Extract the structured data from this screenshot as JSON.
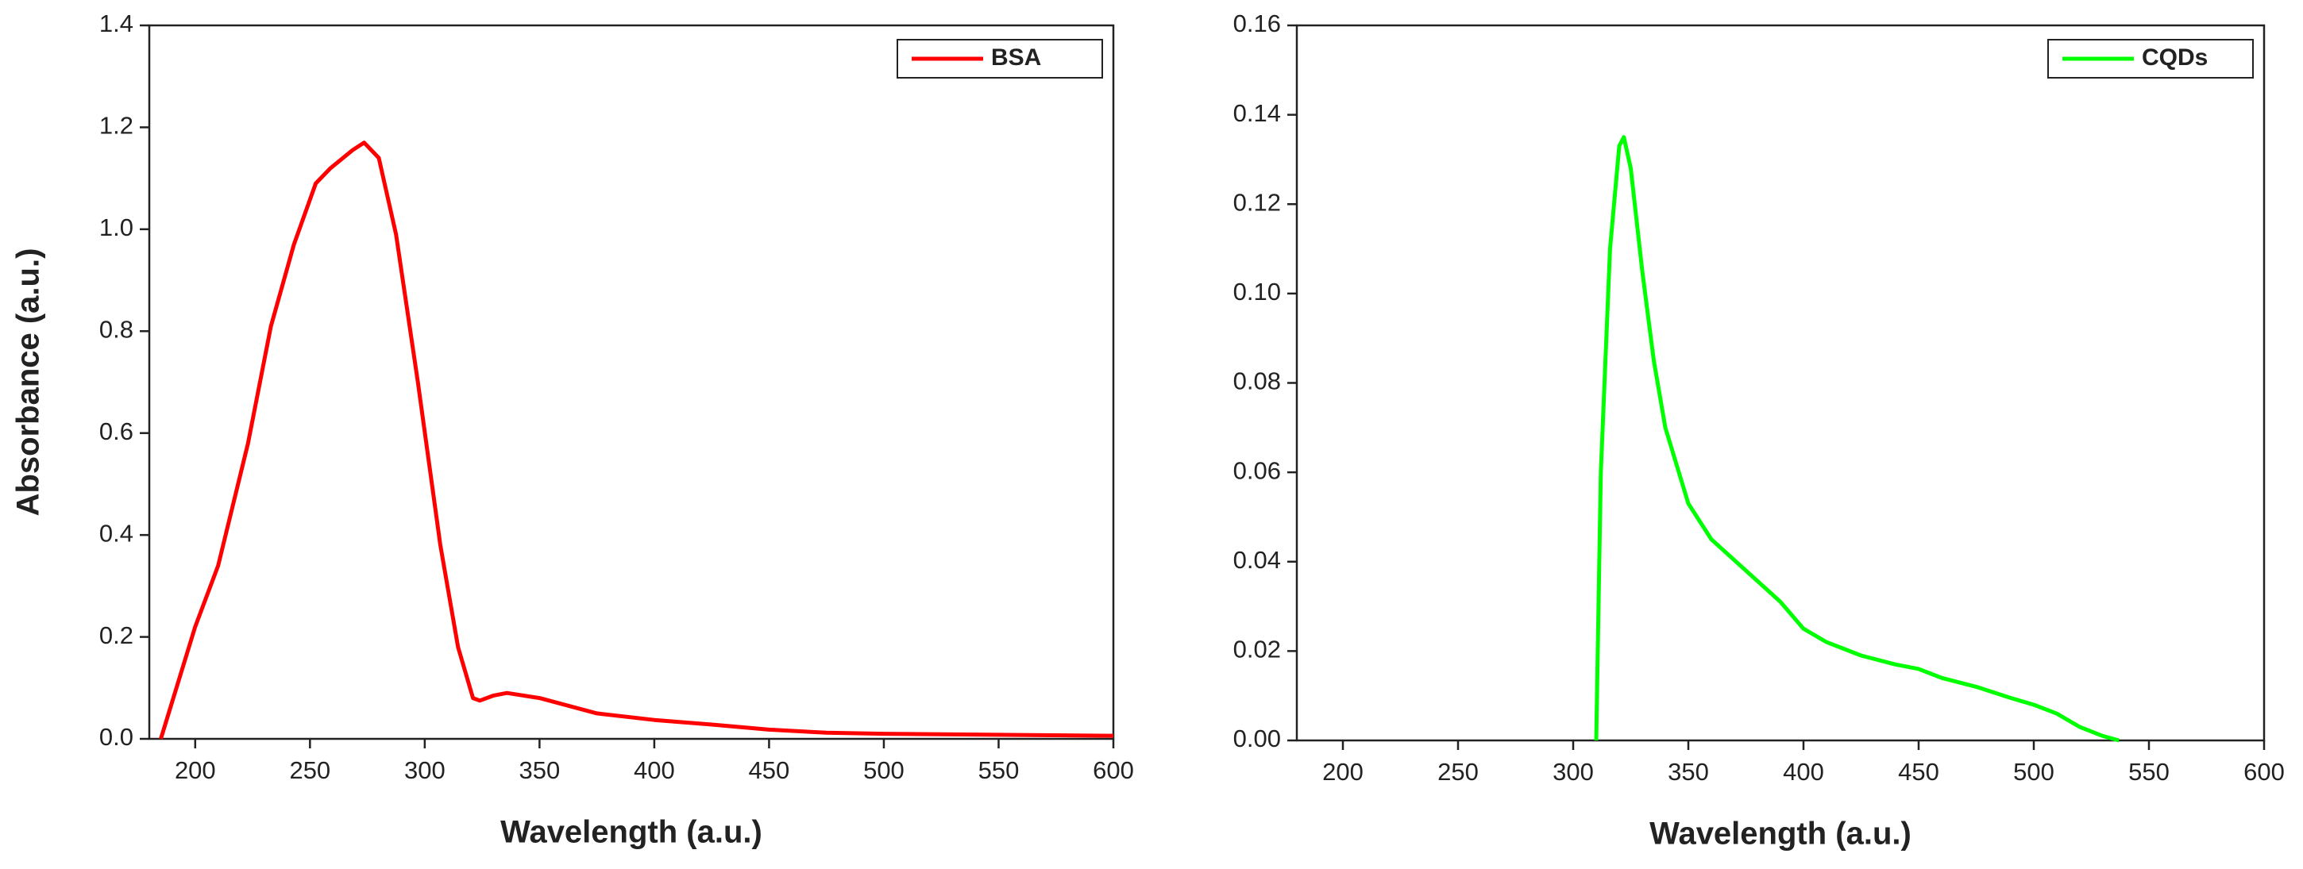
{
  "chart_data": [
    {
      "type": "line",
      "xlabel": "Wavelength (a.u.)",
      "ylabel": "Absorbance (a.u.)",
      "x": [
        185,
        200,
        210,
        223,
        233,
        243,
        252.5,
        259,
        268.5,
        273.6,
        280,
        287.5,
        297,
        306.8,
        314.5,
        321,
        324,
        330,
        335.8,
        350,
        375,
        400,
        425,
        450,
        475,
        500,
        550,
        600
      ],
      "series": [
        {
          "name": "BSA",
          "color": "#ff0000",
          "values": [
            0.0,
            0.22,
            0.34,
            0.58,
            0.81,
            0.97,
            1.09,
            1.12,
            1.155,
            1.17,
            1.14,
            0.99,
            0.7,
            0.38,
            0.18,
            0.08,
            0.075,
            0.085,
            0.09,
            0.08,
            0.05,
            0.037,
            0.028,
            0.018,
            0.012,
            0.01,
            0.008,
            0.006
          ]
        }
      ],
      "xlim": [
        180,
        600
      ],
      "ylim": [
        0,
        1.4
      ],
      "xticks": [
        200,
        250,
        300,
        350,
        400,
        450,
        500,
        550,
        600
      ],
      "yticks": [
        {
          "value": 0,
          "label": "0.0"
        },
        0.2,
        0.4,
        0.6,
        0.8,
        {
          "value": 1,
          "label": "1.0"
        },
        1.2,
        1.4
      ],
      "legend": "upper right"
    },
    {
      "type": "line",
      "xlabel": "Wavelength (a.u.)",
      "x": [
        310,
        312,
        316,
        320,
        322,
        325,
        330,
        335,
        340,
        350,
        360,
        375,
        390,
        400,
        410,
        425,
        440,
        450,
        460,
        475,
        490,
        500,
        510,
        520,
        530,
        537
      ],
      "series": [
        {
          "name": "CQDs",
          "color": "#00ff00",
          "values": [
            0.0,
            0.06,
            0.11,
            0.133,
            0.135,
            0.128,
            0.105,
            0.085,
            0.07,
            0.053,
            0.045,
            0.038,
            0.031,
            0.025,
            0.022,
            0.019,
            0.017,
            0.016,
            0.014,
            0.012,
            0.0095,
            0.008,
            0.006,
            0.003,
            0.001,
            0.0
          ]
        }
      ],
      "xlim": [
        180,
        600
      ],
      "ylim": [
        0,
        0.16
      ],
      "xticks": [
        200,
        250,
        300,
        350,
        400,
        450,
        500,
        550,
        600
      ],
      "yticks": [
        {
          "value": 0,
          "label": "0.00"
        },
        0.02,
        0.04,
        0.06,
        0.08,
        {
          "value": 0.1,
          "label": "0.10"
        },
        0.12,
        0.14,
        0.16
      ],
      "legend": "upper right"
    }
  ]
}
